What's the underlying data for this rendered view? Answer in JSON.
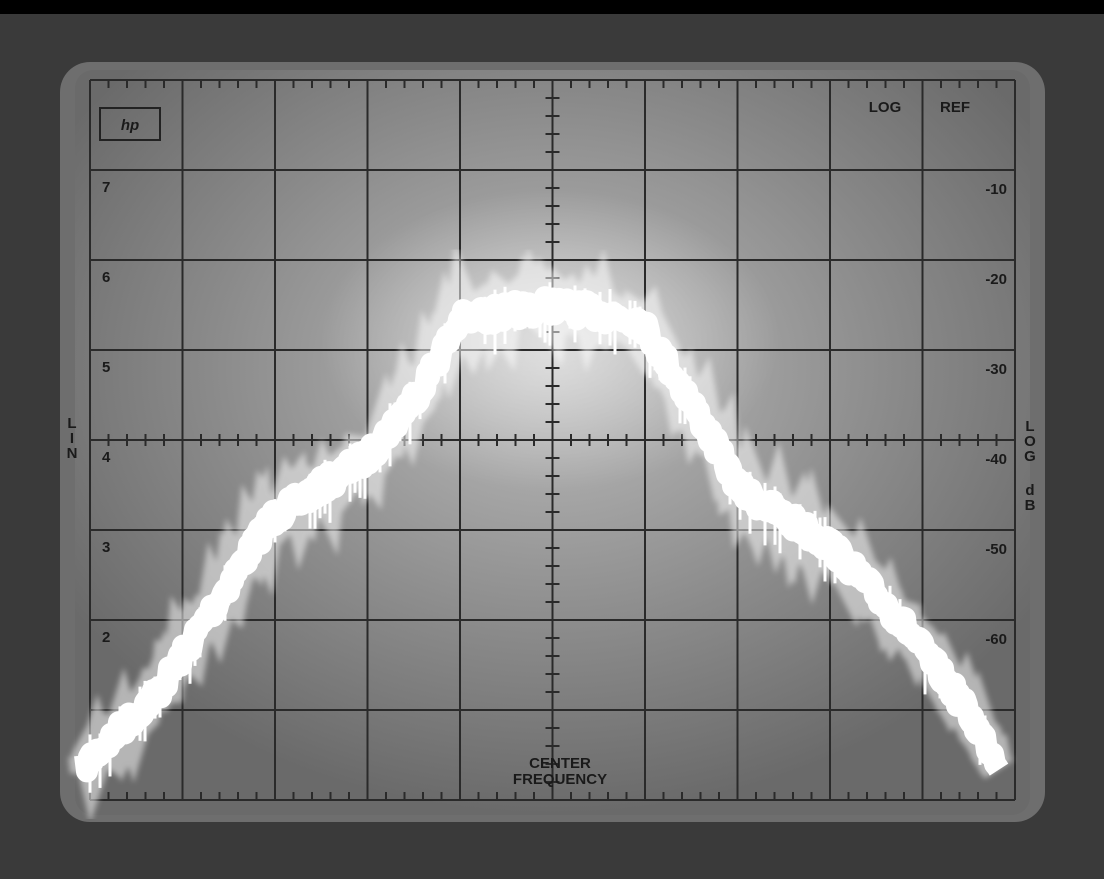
{
  "logo": "hp",
  "header": {
    "mode": "LOG",
    "ref": "REF"
  },
  "left_scale": [
    "7",
    "6",
    "5",
    "4",
    "3",
    "2"
  ],
  "right_scale": [
    "-10",
    "-20",
    "-30",
    "-40",
    "-50",
    "-60"
  ],
  "left_axis_label": "LIN",
  "right_axis_label": [
    "LOG",
    "dB"
  ],
  "footer": [
    "CENTER",
    "FREQUENCY"
  ]
}
